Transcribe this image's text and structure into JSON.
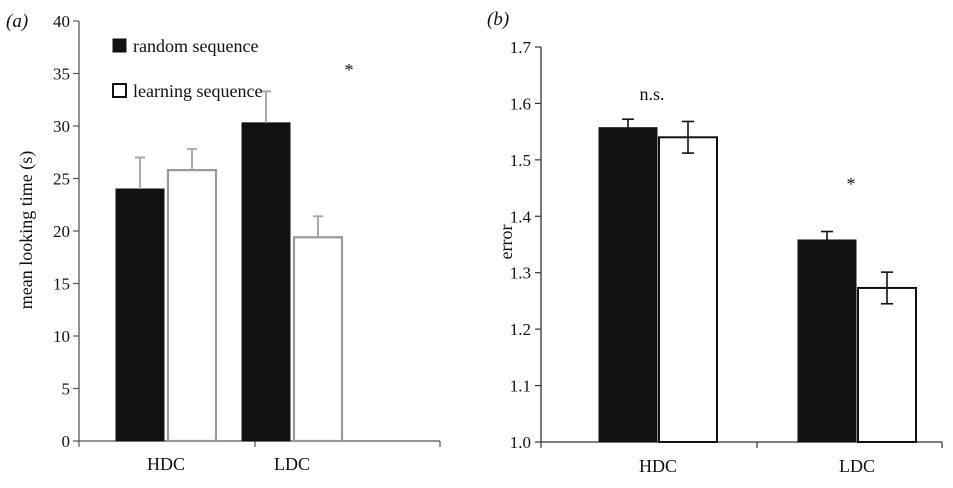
{
  "chart_data": [
    {
      "type": "bar",
      "panel_label": "(a)",
      "categories": [
        "HDC",
        "LDC"
      ],
      "ylabel": "mean looking time (s)",
      "xlabel": "",
      "ylim": [
        0,
        40
      ],
      "yticks": [
        "0",
        "5",
        "10",
        "15",
        "20",
        "25",
        "30",
        "35",
        "40"
      ],
      "legend_position": "top-left",
      "series": [
        {
          "name": "random sequence",
          "color": "#111111",
          "values": [
            24.0,
            30.3
          ],
          "errors": [
            3.0,
            3.0
          ]
        },
        {
          "name": "learning sequence",
          "color": "#ffffff",
          "values": [
            25.8,
            19.4
          ],
          "errors": [
            2.0,
            2.0
          ]
        }
      ],
      "annotations": [
        {
          "category": "LDC",
          "text": "*"
        }
      ],
      "error_bar_style": "upper only, light grey"
    },
    {
      "type": "bar",
      "panel_label": "(b)",
      "categories": [
        "HDC",
        "LDC"
      ],
      "ylabel": "error",
      "xlabel": "",
      "ylim": [
        1.0,
        1.7
      ],
      "yticks": [
        "1.0",
        "1.1",
        "1.2",
        "1.3",
        "1.4",
        "1.5",
        "1.6",
        "1.7"
      ],
      "series": [
        {
          "color": "#111111",
          "values": [
            1.557,
            1.358
          ],
          "errors": [
            0.015,
            0.015
          ]
        },
        {
          "color": "#ffffff",
          "values": [
            1.54,
            1.273
          ],
          "errors": [
            0.028,
            0.028
          ]
        }
      ],
      "annotations": [
        {
          "category": "HDC",
          "text": "n.s."
        },
        {
          "category": "LDC",
          "text": "*"
        }
      ],
      "error_bar_style": "two-sided, black"
    }
  ]
}
